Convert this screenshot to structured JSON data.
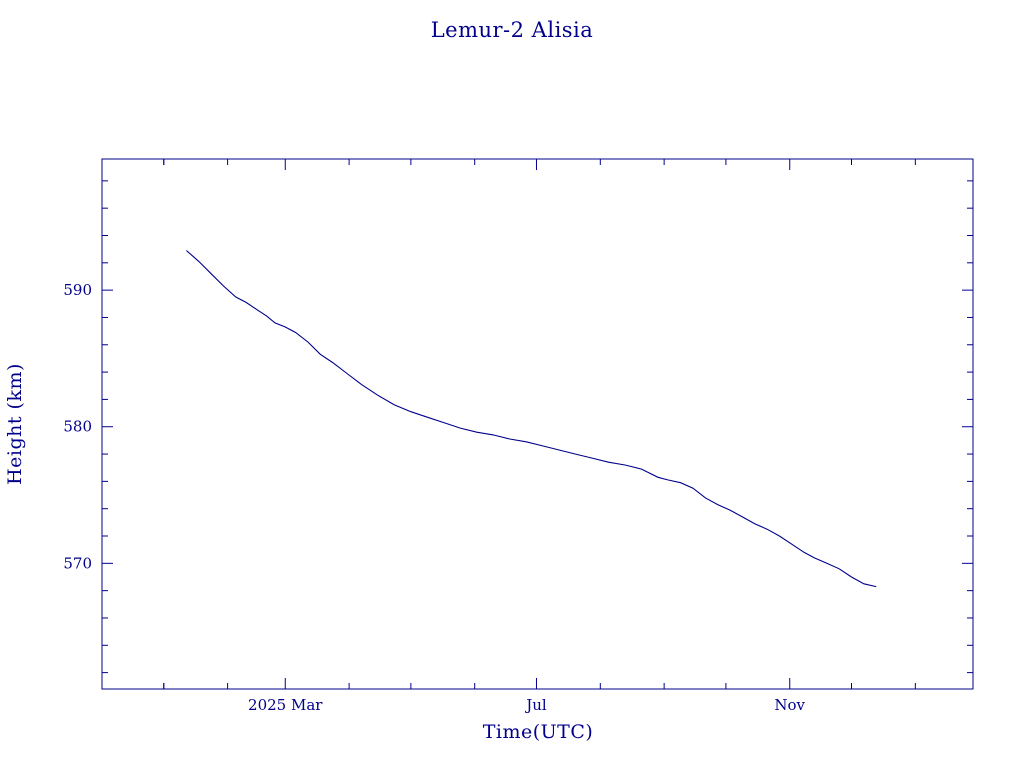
{
  "chart_data": {
    "type": "line",
    "title": "Lemur-2 Alisia",
    "xlabel": "Time(UTC)",
    "ylabel": "Height (km)",
    "x_tick_labels": [
      "2025 Mar",
      "Jul",
      "Nov"
    ],
    "x_tick_dates": [
      "2025-03-01",
      "2025-07-01",
      "2025-11-01"
    ],
    "xlim": [
      "2024-12-02",
      "2026-01-29"
    ],
    "ylim": [
      560.8,
      599.6
    ],
    "y_ticks": [
      570,
      580,
      590
    ],
    "grid": false,
    "color": "#00008b",
    "series": [
      {
        "x": [
          "2025-01-12",
          "2025-01-18",
          "2025-01-24",
          "2025-01-30",
          "2025-02-05",
          "2025-02-10",
          "2025-02-15",
          "2025-02-20",
          "2025-02-24",
          "2025-03-01",
          "2025-03-06",
          "2025-03-12",
          "2025-03-18",
          "2025-03-24",
          "2025-03-31",
          "2025-04-07",
          "2025-04-15",
          "2025-04-23",
          "2025-05-01",
          "2025-05-09",
          "2025-05-17",
          "2025-05-25",
          "2025-06-02",
          "2025-06-10",
          "2025-06-18",
          "2025-06-26",
          "2025-07-04",
          "2025-07-12",
          "2025-07-20",
          "2025-07-28",
          "2025-08-05",
          "2025-08-13",
          "2025-08-21",
          "2025-08-29",
          "2025-09-03",
          "2025-09-09",
          "2025-09-15",
          "2025-09-21",
          "2025-09-27",
          "2025-10-03",
          "2025-10-09",
          "2025-10-15",
          "2025-10-21",
          "2025-10-27",
          "2025-11-02",
          "2025-11-08",
          "2025-11-13",
          "2025-11-19",
          "2025-11-25",
          "2025-12-01",
          "2025-12-07",
          "2025-12-13"
        ],
        "y": [
          592.9,
          592.1,
          591.2,
          590.3,
          589.5,
          589.1,
          588.6,
          588.1,
          587.6,
          587.3,
          586.9,
          586.2,
          585.3,
          584.7,
          583.9,
          583.1,
          582.3,
          581.6,
          581.1,
          580.7,
          580.3,
          579.9,
          579.6,
          579.4,
          579.1,
          578.9,
          578.6,
          578.3,
          578.0,
          577.7,
          577.4,
          577.2,
          576.9,
          576.3,
          576.1,
          575.9,
          575.5,
          574.8,
          574.3,
          573.9,
          573.4,
          572.9,
          572.5,
          572.0,
          571.4,
          570.8,
          570.4,
          570.0,
          569.6,
          569.0,
          568.5,
          568.3
        ]
      }
    ]
  }
}
